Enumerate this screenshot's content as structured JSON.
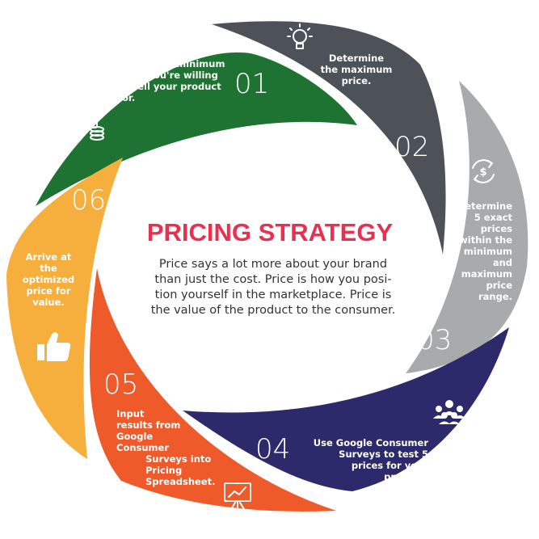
{
  "colors": {
    "step1": "#1e7232",
    "step2": "#4d5259",
    "step3": "#a9aaac",
    "step4": "#2c2a6b",
    "step5": "#ee5a2a",
    "step6": "#f6ae3c",
    "title": "#e8314f",
    "text": "#333333"
  },
  "center": {
    "title": "PRICING STRATEGY",
    "description_lines": [
      "Price says a lot more about your brand",
      "than just the cost. Price is how you posi-",
      "tion yourself in the marketplace. Price is",
      "the value of the product to the consumer."
    ]
  },
  "steps": [
    {
      "number": "01",
      "icon": "credit-card-coins-icon",
      "lines": [
        "Determine minimum",
        "price you're willing",
        "to sell your product",
        "for."
      ]
    },
    {
      "number": "02",
      "icon": "lightbulb-icon",
      "lines": [
        "Determine",
        "the maximum",
        "price."
      ]
    },
    {
      "number": "03",
      "icon": "dollar-cycle-icon",
      "lines": [
        "Determine",
        "5 exact",
        "prices",
        "within the",
        "minimum",
        "and",
        "maximum",
        "price",
        "range."
      ]
    },
    {
      "number": "04",
      "icon": "people-group-icon",
      "lines": [
        "Use Google Consumer",
        "Surveys to test 5",
        "prices for your",
        "product."
      ]
    },
    {
      "number": "05",
      "icon": "presentation-chart-icon",
      "lines": [
        "Input",
        "results from",
        "Google",
        "Consumer",
        "Surveys into",
        "Pricing",
        "Spreadsheet."
      ]
    },
    {
      "number": "06",
      "icon": "thumbs-up-icon",
      "lines": [
        "Arrive at",
        "the",
        "optimized",
        "price for",
        "value."
      ]
    }
  ]
}
